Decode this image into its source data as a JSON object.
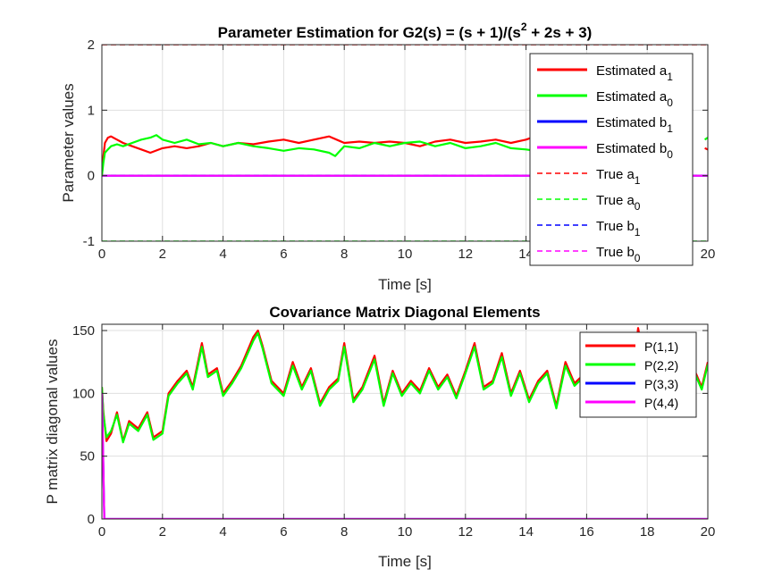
{
  "chart_data": [
    {
      "type": "line",
      "title": "Parameter Estimation for G2(s) = (s + 1)/(s^2 + 2s + 3)",
      "title_parts": {
        "before": "Parameter Estimation for G2(s) = (s + 1)/(s",
        "sup": "2",
        "after": " + 2s + 3)"
      },
      "xlabel": "Time [s]",
      "ylabel": "Parameter values",
      "xlim": [
        0,
        20
      ],
      "ylim": [
        -1,
        2
      ],
      "xticks": [
        0,
        2,
        4,
        6,
        8,
        10,
        12,
        14,
        16,
        18,
        20
      ],
      "yticks": [
        -1,
        0,
        1,
        2
      ],
      "grid": true,
      "legend_position": "top-right",
      "series": [
        {
          "name": "Estimated a",
          "sub": "1",
          "color": "#ff0000",
          "style": "solid",
          "x": [
            0,
            0.05,
            0.1,
            0.2,
            0.3,
            0.5,
            0.7,
            1.0,
            1.3,
            1.6,
            2.0,
            2.4,
            2.8,
            3.2,
            3.6,
            4.0,
            4.5,
            5.0,
            5.5,
            6.0,
            6.5,
            7.0,
            7.5,
            8.0,
            8.5,
            9.0,
            9.5,
            10.0,
            10.5,
            11.0,
            11.5,
            12.0,
            12.5,
            13.0,
            13.5,
            14.0,
            14.3
          ],
          "y": [
            0.0,
            0.3,
            0.5,
            0.58,
            0.6,
            0.55,
            0.5,
            0.45,
            0.4,
            0.35,
            0.42,
            0.45,
            0.42,
            0.45,
            0.5,
            0.45,
            0.5,
            0.48,
            0.52,
            0.55,
            0.5,
            0.55,
            0.6,
            0.5,
            0.52,
            0.5,
            0.52,
            0.5,
            0.45,
            0.52,
            0.55,
            0.5,
            0.52,
            0.55,
            0.5,
            0.55,
            0.6
          ]
        },
        {
          "name": "Estimated a",
          "sub": "0",
          "color": "#00ff00",
          "style": "solid",
          "x": [
            0,
            0.05,
            0.1,
            0.2,
            0.3,
            0.5,
            0.7,
            1.0,
            1.3,
            1.6,
            1.8,
            2.0,
            2.4,
            2.8,
            3.2,
            3.6,
            4.0,
            4.5,
            5.0,
            5.5,
            6.0,
            6.5,
            7.0,
            7.5,
            7.7,
            8.0,
            8.5,
            9.0,
            9.5,
            10.0,
            10.5,
            11.0,
            11.5,
            12.0,
            12.5,
            13.0,
            13.5,
            14.0,
            14.3
          ],
          "y": [
            0.0,
            0.2,
            0.35,
            0.4,
            0.45,
            0.48,
            0.45,
            0.5,
            0.55,
            0.58,
            0.62,
            0.55,
            0.5,
            0.55,
            0.48,
            0.5,
            0.45,
            0.5,
            0.45,
            0.42,
            0.38,
            0.42,
            0.4,
            0.35,
            0.3,
            0.45,
            0.42,
            0.5,
            0.45,
            0.5,
            0.52,
            0.45,
            0.5,
            0.42,
            0.45,
            0.5,
            0.42,
            0.4,
            0.38
          ]
        },
        {
          "name": "Estimated b",
          "sub": "1",
          "color": "#0000ff",
          "style": "solid",
          "x": [
            0,
            20
          ],
          "y": [
            0,
            0
          ]
        },
        {
          "name": "Estimated b",
          "sub": "0",
          "color": "#ff00ff",
          "style": "solid",
          "x": [
            0,
            20
          ],
          "y": [
            0,
            0
          ]
        },
        {
          "name": "True a",
          "sub": "1",
          "color": "#ff0000",
          "style": "dashed",
          "x": [
            0,
            20
          ],
          "y": [
            2,
            2
          ]
        },
        {
          "name": "True a",
          "sub": "0",
          "color": "#00ff00",
          "style": "dashed",
          "x": [
            0,
            20
          ],
          "y": [
            -1,
            -1
          ]
        },
        {
          "name": "True b",
          "sub": "1",
          "color": "#0000ff",
          "style": "dashed",
          "x": [
            0,
            20
          ],
          "y": [
            0,
            0
          ]
        },
        {
          "name": "True b",
          "sub": "0",
          "color": "#ff00ff",
          "style": "dashed",
          "x": [
            0,
            20
          ],
          "y": [
            0,
            0
          ]
        }
      ],
      "tail_series": [
        {
          "color": "#ff0000",
          "x": [
            19.9,
            20
          ],
          "y": [
            0.42,
            0.4
          ]
        },
        {
          "color": "#00ff00",
          "x": [
            19.9,
            20
          ],
          "y": [
            0.55,
            0.58
          ]
        }
      ]
    },
    {
      "type": "line",
      "title": "Covariance Matrix Diagonal Elements",
      "xlabel": "Time [s]",
      "ylabel": "P matrix diagonal values",
      "xlim": [
        0,
        20
      ],
      "ylim": [
        0,
        155
      ],
      "xticks": [
        0,
        2,
        4,
        6,
        8,
        10,
        12,
        14,
        16,
        18,
        20
      ],
      "yticks": [
        0,
        50,
        100,
        150
      ],
      "grid": true,
      "legend_position": "top-right",
      "series": [
        {
          "name": "P(1,1)",
          "color": "#ff0000",
          "style": "solid",
          "x": [
            0,
            0.05,
            0.15,
            0.3,
            0.5,
            0.7,
            0.9,
            1.2,
            1.5,
            1.7,
            2.0,
            2.2,
            2.5,
            2.8,
            3.0,
            3.3,
            3.5,
            3.8,
            4.0,
            4.3,
            4.6,
            5.0,
            5.15,
            5.3,
            5.6,
            6.0,
            6.3,
            6.6,
            6.9,
            7.2,
            7.5,
            7.8,
            8.0,
            8.3,
            8.6,
            9.0,
            9.3,
            9.6,
            9.9,
            10.2,
            10.5,
            10.8,
            11.1,
            11.4,
            11.7,
            12.0,
            12.3,
            12.6,
            12.9,
            13.2,
            13.5,
            13.8,
            14.1,
            14.4,
            14.7,
            15.0,
            15.3,
            15.6,
            15.9,
            16.2,
            16.5,
            16.8,
            17.1,
            17.4,
            17.7,
            18.0,
            18.3,
            18.6,
            18.9,
            19.2,
            19.5,
            19.8,
            20.0
          ],
          "y": [
            105,
            85,
            62,
            68,
            85,
            62,
            78,
            72,
            85,
            65,
            70,
            100,
            110,
            118,
            105,
            140,
            115,
            120,
            100,
            110,
            122,
            145,
            150,
            138,
            110,
            100,
            125,
            105,
            120,
            92,
            105,
            112,
            140,
            95,
            105,
            130,
            92,
            118,
            100,
            110,
            102,
            120,
            105,
            115,
            98,
            118,
            140,
            105,
            110,
            132,
            100,
            118,
            95,
            110,
            118,
            90,
            125,
            108,
            115,
            92,
            102,
            120,
            95,
            85,
            152,
            112,
            100,
            132,
            105,
            100,
            122,
            105,
            125
          ]
        },
        {
          "name": "P(2,2)",
          "color": "#00ff00",
          "style": "solid",
          "x": [
            0,
            0.05,
            0.15,
            0.3,
            0.5,
            0.7,
            0.9,
            1.2,
            1.5,
            1.7,
            2.0,
            2.2,
            2.5,
            2.8,
            3.0,
            3.3,
            3.5,
            3.8,
            4.0,
            4.3,
            4.6,
            5.0,
            5.15,
            5.3,
            5.6,
            6.0,
            6.3,
            6.6,
            6.9,
            7.2,
            7.5,
            7.8,
            8.0,
            8.3,
            8.6,
            9.0,
            9.3,
            9.6,
            9.9,
            10.2,
            10.5,
            10.8,
            11.1,
            11.4,
            11.7,
            12.0,
            12.3,
            12.6,
            12.9,
            13.2,
            13.5,
            13.8,
            14.1,
            14.4,
            14.7,
            15.0,
            15.3,
            15.6,
            15.9,
            16.2,
            16.5,
            16.8,
            17.1,
            17.4,
            17.7,
            18.0,
            18.3,
            18.6,
            18.9,
            19.2,
            19.5,
            19.8,
            20.0
          ],
          "y": [
            105,
            83,
            65,
            70,
            83,
            61,
            76,
            70,
            83,
            63,
            68,
            98,
            108,
            116,
            103,
            137,
            113,
            118,
            98,
            108,
            120,
            142,
            148,
            136,
            108,
            98,
            122,
            103,
            118,
            90,
            103,
            110,
            137,
            93,
            103,
            127,
            90,
            116,
            98,
            108,
            100,
            118,
            103,
            113,
            96,
            116,
            137,
            103,
            108,
            129,
            98,
            116,
            93,
            108,
            116,
            88,
            122,
            106,
            113,
            90,
            100,
            118,
            93,
            83,
            145,
            110,
            98,
            129,
            103,
            98,
            120,
            103,
            123
          ]
        },
        {
          "name": "P(3,3)",
          "color": "#0000ff",
          "style": "solid",
          "x": [
            0,
            0.04,
            0.08,
            20
          ],
          "y": [
            100,
            50,
            0,
            0
          ]
        },
        {
          "name": "P(4,4)",
          "color": "#ff00ff",
          "style": "solid",
          "x": [
            0,
            0.04,
            0.08,
            20
          ],
          "y": [
            100,
            50,
            0,
            0
          ]
        }
      ]
    }
  ]
}
